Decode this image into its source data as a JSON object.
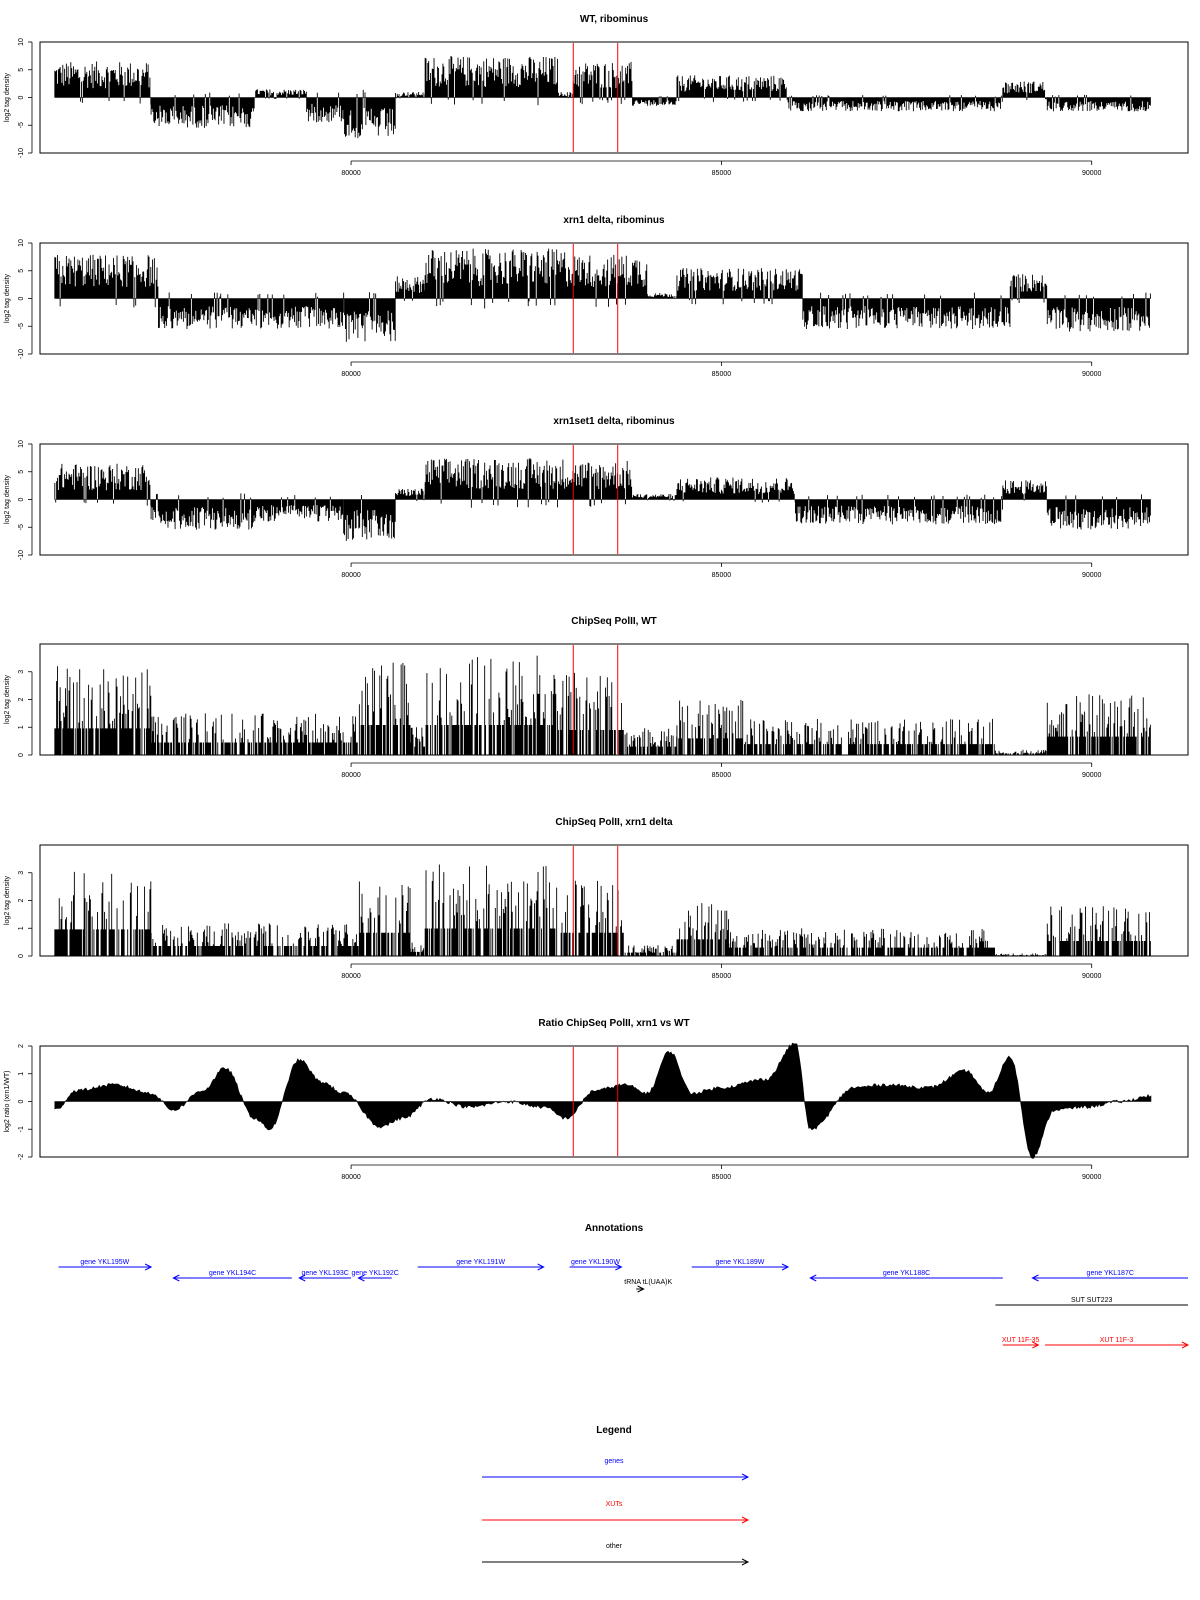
{
  "chart_data": [
    {
      "type": "bar",
      "title": "WT, ribominus",
      "ylabel": "log2 tag density",
      "xlim": [
        75800,
        91300
      ],
      "ylim": [
        -10,
        10
      ],
      "x_ticks": [
        "80000",
        "85000",
        "90000"
      ],
      "x_tick_values": [
        80000,
        85000,
        90000
      ],
      "y_ticks": [
        "-10",
        "-5",
        "0",
        "5",
        "10"
      ],
      "y_tick_values": [
        -10,
        -5,
        0,
        5,
        10
      ],
      "marker_lines": [
        83000,
        83600
      ],
      "signal_profile": [
        {
          "start": 76000,
          "end": 77300,
          "max": 6.5
        },
        {
          "start": 77300,
          "end": 78700,
          "max": -5.5
        },
        {
          "start": 78700,
          "end": 79400,
          "max": 1.5
        },
        {
          "start": 79400,
          "end": 79900,
          "max": -4.5
        },
        {
          "start": 79900,
          "end": 80600,
          "max": -7.5
        },
        {
          "start": 80600,
          "end": 81000,
          "max": 1.0
        },
        {
          "start": 81000,
          "end": 82800,
          "max": 7.5
        },
        {
          "start": 82800,
          "end": 83000,
          "max": 1.0
        },
        {
          "start": 83000,
          "end": 83800,
          "max": 6.5
        },
        {
          "start": 83800,
          "end": 84400,
          "max": -1.5
        },
        {
          "start": 84400,
          "end": 85900,
          "max": 4.0
        },
        {
          "start": 85900,
          "end": 88800,
          "max": -2.5
        },
        {
          "start": 88800,
          "end": 89400,
          "max": 3.0
        },
        {
          "start": 89400,
          "end": 90800,
          "max": -2.5
        }
      ]
    },
    {
      "type": "bar",
      "title": "xrn1 delta, ribominus",
      "ylabel": "log2 tag density",
      "xlim": [
        75800,
        91300
      ],
      "ylim": [
        -10,
        10
      ],
      "x_ticks": [
        "80000",
        "85000",
        "90000"
      ],
      "x_tick_values": [
        80000,
        85000,
        90000
      ],
      "y_ticks": [
        "-10",
        "-5",
        "0",
        "5",
        "10"
      ],
      "y_tick_values": [
        -10,
        -5,
        0,
        5,
        10
      ],
      "marker_lines": [
        83000,
        83600
      ],
      "signal_profile": [
        {
          "start": 76000,
          "end": 77400,
          "max": 8.0
        },
        {
          "start": 77400,
          "end": 79900,
          "max": -5.5
        },
        {
          "start": 79900,
          "end": 80600,
          "max": -8.0
        },
        {
          "start": 80600,
          "end": 81000,
          "max": 4.0
        },
        {
          "start": 81000,
          "end": 82900,
          "max": 9.0
        },
        {
          "start": 82900,
          "end": 84000,
          "max": 8.0
        },
        {
          "start": 84000,
          "end": 84400,
          "max": 1.0
        },
        {
          "start": 84400,
          "end": 86100,
          "max": 5.5
        },
        {
          "start": 86100,
          "end": 88900,
          "max": -5.5
        },
        {
          "start": 88900,
          "end": 89400,
          "max": 4.5
        },
        {
          "start": 89400,
          "end": 90800,
          "max": -6.0
        }
      ]
    },
    {
      "type": "bar",
      "title": "xrn1set1 delta, ribominus",
      "ylabel": "log2 tag density",
      "xlim": [
        75800,
        91300
      ],
      "ylim": [
        -10,
        10
      ],
      "x_ticks": [
        "80000",
        "85000",
        "90000"
      ],
      "x_tick_values": [
        80000,
        85000,
        90000
      ],
      "y_ticks": [
        "-10",
        "-5",
        "0",
        "5",
        "10"
      ],
      "y_tick_values": [
        -10,
        -5,
        0,
        5,
        10
      ],
      "marker_lines": [
        83000,
        83600
      ],
      "signal_profile": [
        {
          "start": 76000,
          "end": 77300,
          "max": 6.5
        },
        {
          "start": 77300,
          "end": 78700,
          "max": -5.5
        },
        {
          "start": 78700,
          "end": 79900,
          "max": -4.0
        },
        {
          "start": 79900,
          "end": 80600,
          "max": -7.5
        },
        {
          "start": 80600,
          "end": 81000,
          "max": 2.0
        },
        {
          "start": 81000,
          "end": 82900,
          "max": 7.5
        },
        {
          "start": 82900,
          "end": 83800,
          "max": 7.0
        },
        {
          "start": 83800,
          "end": 84400,
          "max": 1.0
        },
        {
          "start": 84400,
          "end": 86000,
          "max": 4.0
        },
        {
          "start": 86000,
          "end": 88800,
          "max": -4.5
        },
        {
          "start": 88800,
          "end": 89400,
          "max": 3.5
        },
        {
          "start": 89400,
          "end": 90800,
          "max": -5.5
        }
      ]
    },
    {
      "type": "bar",
      "title": "ChipSeq PolII, WT",
      "ylabel": "log2 tag density",
      "xlim": [
        75800,
        91300
      ],
      "ylim": [
        0,
        4
      ],
      "x_ticks": [
        "80000",
        "85000",
        "90000"
      ],
      "x_tick_values": [
        80000,
        85000,
        90000
      ],
      "y_ticks": [
        "0",
        "1",
        "2",
        "3"
      ],
      "y_tick_values": [
        0,
        1,
        2,
        3
      ],
      "marker_lines": [
        83000,
        83600
      ],
      "signal_profile": [
        {
          "start": 76000,
          "end": 77300,
          "max": 3.2
        },
        {
          "start": 77300,
          "end": 80100,
          "max": 1.5
        },
        {
          "start": 80100,
          "end": 80800,
          "max": 3.6
        },
        {
          "start": 80800,
          "end": 81000,
          "max": 1.0
        },
        {
          "start": 81000,
          "end": 82800,
          "max": 3.6
        },
        {
          "start": 82800,
          "end": 83700,
          "max": 3.0
        },
        {
          "start": 83700,
          "end": 84400,
          "max": 1.0
        },
        {
          "start": 84400,
          "end": 85300,
          "max": 2.0
        },
        {
          "start": 85300,
          "end": 88700,
          "max": 1.3
        },
        {
          "start": 88700,
          "end": 89400,
          "max": 0.2
        },
        {
          "start": 89400,
          "end": 90800,
          "max": 2.2
        }
      ]
    },
    {
      "type": "bar",
      "title": "ChipSeq PolII, xrn1 delta",
      "ylabel": "log2 tag density",
      "xlim": [
        75800,
        91300
      ],
      "ylim": [
        0,
        4
      ],
      "x_ticks": [
        "80000",
        "85000",
        "90000"
      ],
      "x_tick_values": [
        80000,
        85000,
        90000
      ],
      "y_ticks": [
        "0",
        "1",
        "2",
        "3"
      ],
      "y_tick_values": [
        0,
        1,
        2,
        3
      ],
      "marker_lines": [
        83000,
        83600
      ],
      "signal_profile": [
        {
          "start": 76000,
          "end": 77300,
          "max": 3.2
        },
        {
          "start": 77300,
          "end": 80100,
          "max": 1.2
        },
        {
          "start": 80100,
          "end": 80800,
          "max": 2.8
        },
        {
          "start": 80800,
          "end": 81000,
          "max": 0.5
        },
        {
          "start": 81000,
          "end": 82800,
          "max": 3.3
        },
        {
          "start": 82800,
          "end": 83700,
          "max": 2.8
        },
        {
          "start": 83700,
          "end": 84400,
          "max": 0.4
        },
        {
          "start": 84400,
          "end": 85100,
          "max": 2.0
        },
        {
          "start": 85100,
          "end": 88700,
          "max": 1.0
        },
        {
          "start": 88700,
          "end": 89400,
          "max": 0.1
        },
        {
          "start": 89400,
          "end": 90800,
          "max": 1.8
        }
      ]
    },
    {
      "type": "area",
      "title": "Ratio ChipSeq PolII, xrn1 vs WT",
      "ylabel": "log2 ratio (xrn1/WT)",
      "xlim": [
        75800,
        91300
      ],
      "ylim": [
        -2,
        2
      ],
      "x_ticks": [
        "80000",
        "85000",
        "90000"
      ],
      "x_tick_values": [
        80000,
        85000,
        90000
      ],
      "y_ticks": [
        "-2",
        "-1",
        "0",
        "1",
        "2"
      ],
      "y_tick_values": [
        -2,
        -1,
        0,
        1,
        2
      ],
      "marker_lines": [
        83000,
        83600
      ],
      "x": [
        76000,
        76300,
        76800,
        77300,
        77600,
        78000,
        78300,
        78700,
        78900,
        79300,
        79600,
        79900,
        80400,
        80700,
        81100,
        81600,
        82100,
        82600,
        82900,
        83300,
        83700,
        84000,
        84300,
        84600,
        85000,
        85600,
        86000,
        86200,
        86800,
        87200,
        87800,
        88300,
        88600,
        88900,
        89200,
        89500,
        89900,
        90400,
        90800
      ],
      "y": [
        -0.3,
        0.4,
        0.6,
        0.3,
        -0.3,
        0.4,
        1.2,
        -0.6,
        -1.0,
        1.5,
        0.7,
        0.3,
        -0.9,
        -0.6,
        0.1,
        -0.2,
        0.0,
        -0.2,
        -0.6,
        0.4,
        0.6,
        0.3,
        1.8,
        0.3,
        0.5,
        0.8,
        2.1,
        -1.0,
        0.5,
        0.6,
        0.5,
        1.1,
        0.3,
        1.6,
        -2.0,
        -0.3,
        -0.2,
        0.0,
        0.2
      ]
    }
  ],
  "annotations": {
    "title": "Annotations",
    "xlim": [
      75800,
      91300
    ],
    "features": [
      {
        "label": "gene YKL195W",
        "start": 76050,
        "end": 77300,
        "strand": "+",
        "color": "#0000ff",
        "row": 0
      },
      {
        "label": "gene YKL194C",
        "start": 77600,
        "end": 79200,
        "strand": "-",
        "color": "#0000ff",
        "row": 1
      },
      {
        "label": "gene YKL193C",
        "start": 79300,
        "end": 80000,
        "strand": "-",
        "color": "#0000ff",
        "row": 1
      },
      {
        "label": "gene YKL192C",
        "start": 80100,
        "end": 80550,
        "strand": "-",
        "color": "#0000ff",
        "row": 1
      },
      {
        "label": "gene YKL191W",
        "start": 80900,
        "end": 82600,
        "strand": "+",
        "color": "#0000ff",
        "row": 0
      },
      {
        "label": "gene YKL190W",
        "start": 82950,
        "end": 83650,
        "strand": "+",
        "color": "#0000ff",
        "row": 0
      },
      {
        "label": "tRNA tL(UAA)K",
        "start": 83850,
        "end": 83950,
        "strand": "+",
        "color": "#000000",
        "row": 2
      },
      {
        "label": "gene YKL189W",
        "start": 84600,
        "end": 85900,
        "strand": "+",
        "color": "#0000ff",
        "row": 0
      },
      {
        "label": "gene YKL188C",
        "start": 86200,
        "end": 88800,
        "strand": "-",
        "color": "#0000ff",
        "row": 1
      },
      {
        "label": "gene YKL187C",
        "start": 89200,
        "end": 91300,
        "strand": "-",
        "color": "#0000ff",
        "row": 1
      },
      {
        "label": "SUT SUT223",
        "start": 88700,
        "end": 91300,
        "strand": "",
        "color": "#000000",
        "row": 3
      },
      {
        "label": "XUT 11F-35",
        "start": 88800,
        "end": 89280,
        "strand": "+",
        "color": "#ff0000",
        "row": 4
      },
      {
        "label": "XUT 11F-3",
        "start": 89370,
        "end": 91300,
        "strand": "+",
        "color": "#ff0000",
        "row": 4
      }
    ]
  },
  "legend": {
    "title": "Legend",
    "items": [
      {
        "label": "genes",
        "color": "#0000ff"
      },
      {
        "label": "XUTs",
        "color": "#ff0000"
      },
      {
        "label": "other",
        "color": "#000000"
      }
    ]
  },
  "colors": {
    "signal": "#000000",
    "marker": "#ff0000",
    "gene": "#0000ff",
    "xut": "#ff0000",
    "other": "#000000"
  }
}
